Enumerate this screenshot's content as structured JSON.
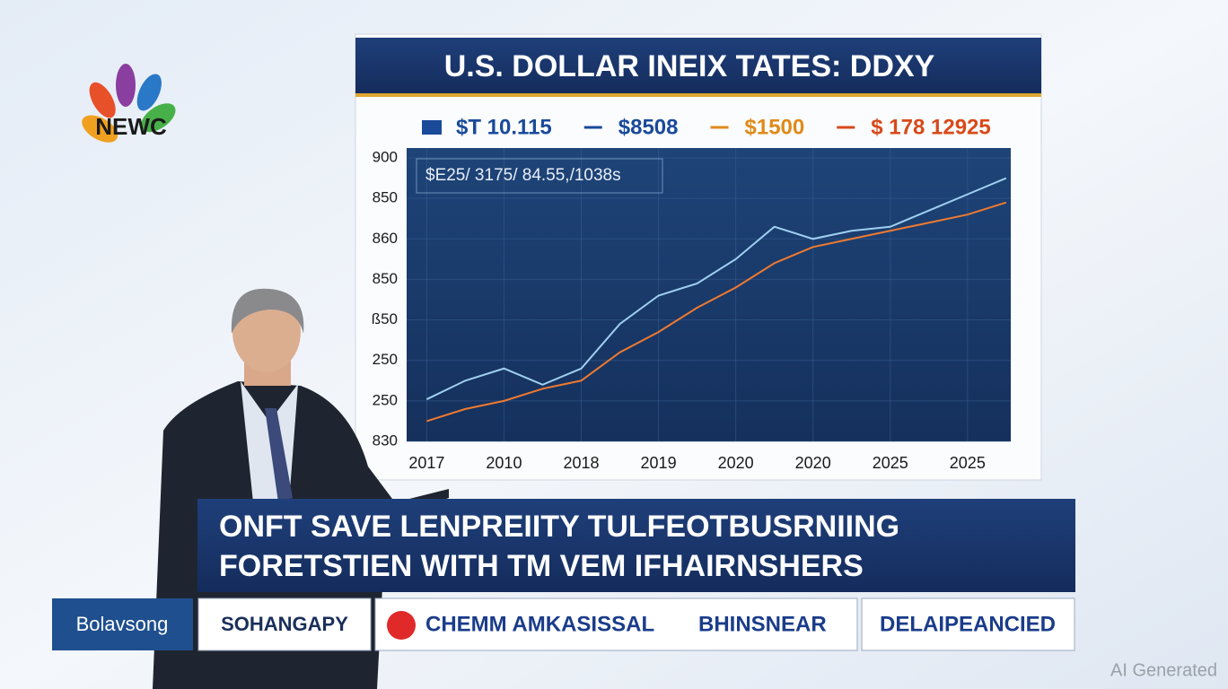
{
  "logo": {
    "text": "NEWC"
  },
  "chart_data": {
    "type": "line",
    "title": "U.S. DOLLAR INEIX TATES: DDXY",
    "legend": [
      {
        "label": "$T 10.115",
        "color": "#1a4a9a"
      },
      {
        "label": "$8508",
        "color": "#1a4a9a"
      },
      {
        "label": "$1500",
        "color": "#e08a1a"
      },
      {
        "label": "$ 178 12925",
        "color": "#d84a1a"
      }
    ],
    "annotation": "$E25/ 3175/ 84.55,/1038s",
    "x": [
      0,
      0.5,
      1,
      1.5,
      2,
      2.5,
      3,
      3.5,
      4,
      4.5,
      5,
      5.5,
      6,
      6.5,
      7,
      7.5
    ],
    "series": [
      {
        "name": "$8508",
        "color": "#9fd0f0",
        "values": [
          1.04,
          1.5,
          1.8,
          1.4,
          1.8,
          2.9,
          3.6,
          3.9,
          4.5,
          5.3,
          5.0,
          5.2,
          5.3,
          5.7,
          6.1,
          6.5
        ]
      },
      {
        "name": "$1500",
        "color": "#f07a30",
        "values": [
          0.5,
          0.8,
          1.0,
          1.3,
          1.5,
          2.2,
          2.7,
          3.3,
          3.8,
          4.4,
          4.8,
          5.0,
          5.2,
          5.4,
          5.6,
          5.9
        ]
      }
    ],
    "xlim": [
      -0.26,
      7.56
    ],
    "xticks": [
      {
        "value": 0,
        "label": "2017"
      },
      {
        "value": 1,
        "label": "2010"
      },
      {
        "value": 2,
        "label": "2018"
      },
      {
        "value": 3,
        "label": "2019"
      },
      {
        "value": 4,
        "label": "2020"
      },
      {
        "value": 5,
        "label": "2020"
      },
      {
        "value": 6,
        "label": "2025"
      },
      {
        "value": 7,
        "label": "2025"
      }
    ],
    "ylim": [
      0,
      7
    ],
    "yticks": [
      {
        "value": 7,
        "label": "900"
      },
      {
        "value": 6,
        "label": "850"
      },
      {
        "value": 5,
        "label": "860"
      },
      {
        "value": 4,
        "label": "850"
      },
      {
        "value": 3,
        "label": "ß50"
      },
      {
        "value": 2,
        "label": "250"
      },
      {
        "value": 1,
        "label": "250"
      },
      {
        "value": 0,
        "label": "830"
      }
    ],
    "grid": true
  },
  "lower_third": {
    "lines": [
      "ONFT SAVE LENPREIITY TULFEOTBUSRNIING",
      "FORETSTIEN WITH TM VEM IFHAIRNSHERS"
    ]
  },
  "ticker": {
    "items": [
      "Bolavsong",
      "SOHANGAPY",
      "CHEMM AMKASISSAL",
      "BHINSNEAR",
      "DELAIPEANCIED"
    ]
  },
  "watermark": "AI Generated"
}
